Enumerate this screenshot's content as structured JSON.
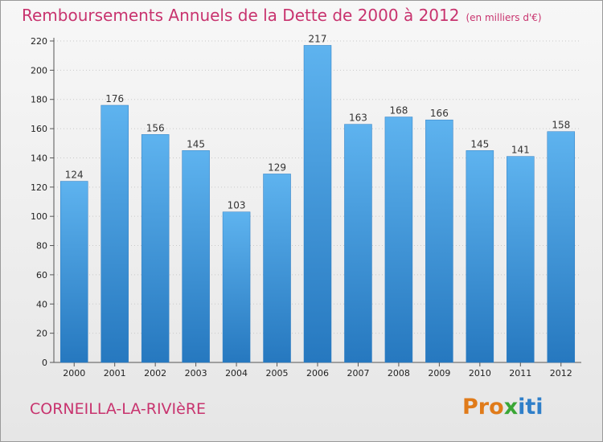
{
  "title": {
    "main": "Remboursements Annuels de la Dette de 2000 à 2012",
    "unit": "(en milliers d'€)"
  },
  "commune": "CORNEILLA-LA-RIVIèRE",
  "logo": {
    "letters": [
      {
        "char": "P",
        "color": "#e07b1a"
      },
      {
        "char": "r",
        "color": "#e07b1a"
      },
      {
        "char": "o",
        "color": "#e07b1a"
      },
      {
        "char": "x",
        "color": "#3aa635"
      },
      {
        "char": "i",
        "color": "#2f7fc9"
      },
      {
        "char": "t",
        "color": "#2f7fc9"
      },
      {
        "char": "i",
        "color": "#2f7fc9"
      }
    ]
  },
  "chart_data": {
    "type": "bar",
    "title": "Remboursements Annuels de la Dette de 2000 à 2012",
    "subtitle": "(en milliers d'€)",
    "categories": [
      "2000",
      "2001",
      "2002",
      "2003",
      "2004",
      "2005",
      "2006",
      "2007",
      "2008",
      "2009",
      "2010",
      "2011",
      "2012"
    ],
    "values": [
      124,
      176,
      156,
      145,
      103,
      129,
      217,
      163,
      168,
      166,
      145,
      141,
      158
    ],
    "ylim": [
      0,
      220
    ],
    "yticks": [
      0,
      20,
      40,
      60,
      80,
      100,
      120,
      140,
      160,
      180,
      200,
      220
    ],
    "grid": true,
    "legend": "none",
    "bar_color": "#4a9fe0"
  }
}
